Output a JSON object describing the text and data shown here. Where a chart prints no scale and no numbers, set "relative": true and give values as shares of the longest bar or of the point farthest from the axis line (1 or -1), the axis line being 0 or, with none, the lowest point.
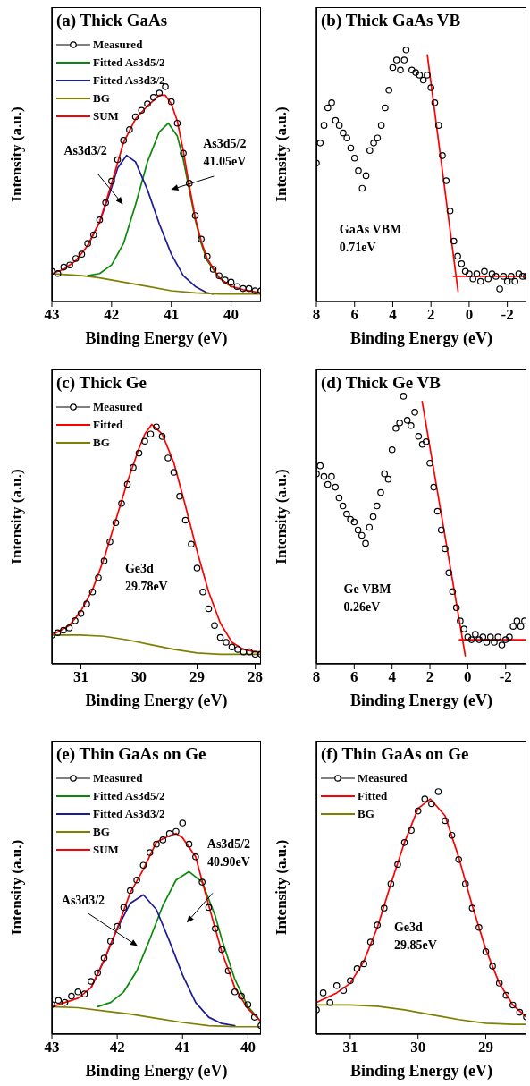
{
  "chart_data": [
    {
      "type": "line",
      "title": "(a) Thick GaAs",
      "xlabel": "Binding Energy (eV)",
      "ylabel": "Intensity (a.u.)",
      "relative": true,
      "xlim": [
        43,
        39.5
      ],
      "xticks": [
        43,
        42,
        41,
        40
      ],
      "legend": "top left",
      "annotations": [
        "As3d3/2",
        "As3d5/2\n41.05eV"
      ],
      "series": [
        {
          "name": "Measured",
          "type": "scatter",
          "color": "#000000",
          "x": [
            43,
            42.9,
            42.8,
            42.7,
            42.6,
            42.5,
            42.4,
            42.3,
            42.2,
            42.1,
            42,
            41.9,
            41.8,
            41.7,
            41.6,
            41.5,
            41.4,
            41.3,
            41.2,
            41.1,
            41,
            40.9,
            40.8,
            40.7,
            40.6,
            40.5,
            40.4,
            40.3,
            40.2,
            40.1,
            40,
            39.9,
            39.8,
            39.7,
            39.6,
            39.5
          ],
          "marker": "circle",
          "values": [
            0.14,
            0.13,
            0.16,
            0.17,
            0.2,
            0.22,
            0.27,
            0.31,
            0.38,
            0.46,
            0.56,
            0.66,
            0.75,
            0.8,
            0.86,
            0.89,
            0.92,
            0.95,
            0.97,
            1,
            0.93,
            0.83,
            0.69,
            0.55,
            0.4,
            0.29,
            0.21,
            0.15,
            0.12,
            0.1,
            0.09,
            0.07,
            0.06,
            0.06,
            0.05,
            0.05
          ]
        },
        {
          "name": "Fitted As3d5/2",
          "color": "#0a8a0a",
          "x": [
            42.4,
            42.2,
            42,
            41.8,
            41.6,
            41.4,
            41.2,
            41.05,
            40.9,
            40.8,
            40.7,
            40.6,
            40.5,
            40.4,
            40.2,
            40
          ],
          "values": [
            0.12,
            0.13,
            0.17,
            0.27,
            0.45,
            0.65,
            0.79,
            0.83,
            0.77,
            0.66,
            0.52,
            0.38,
            0.27,
            0.19,
            0.11,
            0.07
          ]
        },
        {
          "name": "Fitted As3d3/2",
          "color": "#1c1c96",
          "x": [
            42.4,
            42.2,
            42,
            41.9,
            41.75,
            41.6,
            41.4,
            41.2,
            41,
            40.8,
            40.6,
            40.4,
            40.3
          ],
          "values": [
            0.26,
            0.37,
            0.53,
            0.62,
            0.68,
            0.65,
            0.52,
            0.36,
            0.22,
            0.12,
            0.07,
            0.04,
            0.035
          ]
        },
        {
          "name": "BG",
          "color": "#808000",
          "x": [
            43,
            42.5,
            42.2,
            41.8,
            41.4,
            41,
            40.6,
            40.2,
            39.5
          ],
          "values": [
            0.13,
            0.12,
            0.11,
            0.09,
            0.07,
            0.05,
            0.04,
            0.035,
            0.035
          ]
        },
        {
          "name": "SUM",
          "color": "#ff0000",
          "x": [
            43,
            42.8,
            42.6,
            42.4,
            42.2,
            42,
            41.8,
            41.6,
            41.4,
            41.2,
            41.1,
            41,
            40.9,
            40.8,
            40.7,
            40.6,
            40.5,
            40.4,
            40.2,
            40,
            39.8,
            39.5
          ],
          "values": [
            0.13,
            0.15,
            0.19,
            0.26,
            0.37,
            0.55,
            0.74,
            0.85,
            0.91,
            0.96,
            0.96,
            0.92,
            0.84,
            0.7,
            0.54,
            0.39,
            0.28,
            0.2,
            0.11,
            0.07,
            0.055,
            0.04
          ]
        }
      ]
    },
    {
      "type": "line",
      "title": "(b) Thick GaAs VB",
      "xlabel": "Binding Energy (eV)",
      "ylabel": "Intensity (a.u.)",
      "relative": true,
      "xlim": [
        8,
        -3
      ],
      "xticks": [
        8,
        6,
        4,
        2,
        0,
        -2
      ],
      "annotations": [
        "GaAs VBM\n0.71eV"
      ],
      "series": [
        {
          "type": "scatter",
          "color": "#000000",
          "x": [
            8,
            7.8,
            7.6,
            7.4,
            7.2,
            7,
            6.8,
            6.6,
            6.4,
            6.2,
            6,
            5.8,
            5.6,
            5.4,
            5.2,
            5,
            4.8,
            4.6,
            4.4,
            4.2,
            4,
            3.8,
            3.6,
            3.4,
            3.3,
            3,
            2.8,
            2.6,
            2.4,
            2.2,
            2,
            1.8,
            1.6,
            1.4,
            1.2,
            1,
            0.8,
            0.6,
            0.4,
            0.2,
            0,
            -0.2,
            -0.4,
            -0.6,
            -0.8,
            -1,
            -1.2,
            -1.4,
            -1.6,
            -1.8,
            -2,
            -2.2,
            -2.4,
            -2.6,
            -2.8,
            -3
          ],
          "marker": "circle",
          "values": [
            0.55,
            0.63,
            0.7,
            0.77,
            0.79,
            0.72,
            0.7,
            0.67,
            0.65,
            0.61,
            0.57,
            0.52,
            0.45,
            0.5,
            0.6,
            0.63,
            0.65,
            0.7,
            0.77,
            0.84,
            0.93,
            0.96,
            0.92,
            0.96,
            1,
            0.92,
            0.91,
            0.9,
            0.88,
            0.9,
            0.85,
            0.79,
            0.7,
            0.58,
            0.48,
            0.36,
            0.24,
            0.18,
            0.15,
            0.12,
            0.11,
            0.09,
            0.11,
            0.08,
            0.12,
            0.09,
            0.11,
            0.1,
            0.05,
            0.1,
            0.08,
            0.1,
            0.08,
            0.11,
            0.1,
            0.1
          ]
        },
        {
          "color": "#ff0000",
          "x": [
            2.19,
            0.58
          ],
          "values": [
            0.98,
            0.04
          ]
        },
        {
          "color": "#ff0000",
          "x": [
            0.81,
            -3
          ],
          "values": [
            0.1,
            0.1
          ]
        }
      ]
    },
    {
      "type": "line",
      "title": "(c) Thick Ge",
      "xlabel": "Binding Energy (eV)",
      "ylabel": "Intensity (a.u.)",
      "relative": true,
      "xlim": [
        31.5,
        27.9
      ],
      "xticks": [
        31,
        30,
        29,
        28
      ],
      "legend": "top left",
      "annotations": [
        "Ge3d\n29.78eV"
      ],
      "series": [
        {
          "name": "Measured",
          "type": "scatter",
          "color": "#000000",
          "x": [
            31.5,
            31.4,
            31.3,
            31.2,
            31.1,
            31,
            30.9,
            30.8,
            30.7,
            30.6,
            30.5,
            30.4,
            30.3,
            30.2,
            30.1,
            30,
            29.9,
            29.8,
            29.7,
            29.6,
            29.5,
            29.4,
            29.3,
            29.2,
            29.1,
            29,
            28.9,
            28.8,
            28.7,
            28.6,
            28.5,
            28.4,
            28.3,
            28.2,
            28.1,
            28,
            27.9
          ],
          "marker": "circle",
          "values": [
            0.12,
            0.13,
            0.14,
            0.15,
            0.18,
            0.21,
            0.25,
            0.3,
            0.36,
            0.43,
            0.51,
            0.59,
            0.67,
            0.75,
            0.82,
            0.88,
            0.93,
            0.96,
            0.99,
            0.95,
            0.86,
            0.8,
            0.7,
            0.6,
            0.5,
            0.4,
            0.3,
            0.23,
            0.16,
            0.11,
            0.09,
            0.07,
            0.06,
            0.05,
            0.05,
            0.04,
            0.04
          ]
        },
        {
          "name": "Fitted",
          "color": "#ff0000",
          "x": [
            31.5,
            31.2,
            31,
            30.8,
            30.6,
            30.4,
            30.2,
            30,
            29.9,
            29.78,
            29.6,
            29.4,
            29.2,
            29,
            28.8,
            28.6,
            28.4,
            28.2,
            28,
            27.9
          ],
          "values": [
            0.12,
            0.16,
            0.22,
            0.31,
            0.44,
            0.6,
            0.76,
            0.9,
            0.96,
            1,
            0.96,
            0.84,
            0.66,
            0.47,
            0.3,
            0.17,
            0.09,
            0.06,
            0.05,
            0.05
          ]
        },
        {
          "name": "BG",
          "color": "#808000",
          "x": [
            31.5,
            31,
            30.6,
            30.2,
            29.8,
            29.4,
            29,
            28.6,
            28,
            27.9
          ],
          "values": [
            0.12,
            0.12,
            0.115,
            0.1,
            0.08,
            0.06,
            0.045,
            0.04,
            0.04,
            0.04
          ]
        }
      ]
    },
    {
      "type": "line",
      "title": "(d) Thick Ge VB",
      "xlabel": "Binding Energy (eV)",
      "ylabel": "Intensity (a.u.)",
      "relative": true,
      "xlim": [
        8,
        -3.1
      ],
      "xticks": [
        8,
        6,
        4,
        2,
        0,
        -2
      ],
      "annotations": [
        "Ge VBM\n0.26eV"
      ],
      "series": [
        {
          "type": "scatter",
          "color": "#000000",
          "x": [
            8,
            7.8,
            7.6,
            7.4,
            7.2,
            7,
            6.8,
            6.6,
            6.4,
            6.2,
            6,
            5.8,
            5.6,
            5.4,
            5.2,
            5,
            4.8,
            4.6,
            4.4,
            4.2,
            4,
            3.8,
            3.6,
            3.4,
            3.2,
            3,
            2.8,
            2.6,
            2.4,
            2.2,
            2,
            1.8,
            1.6,
            1.4,
            1.2,
            1,
            0.8,
            0.6,
            0.4,
            0.2,
            0,
            -0.2,
            -0.4,
            -0.6,
            -0.8,
            -1,
            -1.2,
            -1.4,
            -1.6,
            -1.8,
            -2,
            -2.2,
            -2.4,
            -2.6,
            -2.8,
            -3
          ],
          "marker": "circle",
          "values": [
            0.71,
            0.74,
            0.7,
            0.67,
            0.7,
            0.66,
            0.62,
            0.59,
            0.56,
            0.54,
            0.53,
            0.5,
            0.48,
            0.45,
            0.51,
            0.55,
            0.59,
            0.64,
            0.71,
            0.69,
            0.8,
            0.88,
            0.9,
            1,
            0.91,
            0.89,
            0.94,
            0.85,
            0.82,
            0.83,
            0.75,
            0.66,
            0.57,
            0.5,
            0.43,
            0.34,
            0.27,
            0.21,
            0.16,
            0.13,
            0.1,
            0.09,
            0.11,
            0.09,
            0.1,
            0.08,
            0.1,
            0.08,
            0.1,
            0.07,
            0.09,
            0.1,
            0.14,
            0.16,
            0.14,
            0.16
          ]
        },
        {
          "color": "#ff0000",
          "x": [
            2.41,
            0.13
          ],
          "values": [
            0.98,
            0.03
          ]
        },
        {
          "color": "#ff0000",
          "x": [
            0.44,
            -3.1
          ],
          "values": [
            0.09,
            0.09
          ]
        }
      ]
    },
    {
      "type": "line",
      "title": "(e) Thin GaAs on Ge",
      "xlabel": "Binding Energy (eV)",
      "ylabel": "Intensity (a.u.)",
      "relative": true,
      "xlim": [
        43,
        39.8
      ],
      "xticks": [
        43,
        42,
        41,
        40
      ],
      "legend": "top left",
      "annotations": [
        "As3d3/2",
        "As3d5/2\n40.90eV"
      ],
      "series": [
        {
          "name": "Measured",
          "type": "scatter",
          "color": "#000000",
          "x": [
            43,
            42.9,
            42.8,
            42.7,
            42.6,
            42.5,
            42.4,
            42.3,
            42.2,
            42.1,
            42,
            41.9,
            41.8,
            41.7,
            41.6,
            41.5,
            41.4,
            41.3,
            41.2,
            41.1,
            41,
            40.9,
            40.8,
            40.7,
            40.6,
            40.5,
            40.4,
            40.3,
            40.2,
            40.1,
            40,
            39.9,
            39.8
          ],
          "marker": "circle",
          "values": [
            0.14,
            0.16,
            0.15,
            0.18,
            0.2,
            0.19,
            0.25,
            0.29,
            0.36,
            0.44,
            0.51,
            0.6,
            0.68,
            0.73,
            0.8,
            0.86,
            0.9,
            0.92,
            0.95,
            0.96,
            1,
            0.9,
            0.84,
            0.72,
            0.6,
            0.5,
            0.4,
            0.3,
            0.2,
            0.18,
            0.14,
            0.08,
            0.04
          ]
        },
        {
          "name": "Fitted As3d5/2",
          "color": "#0a8a0a",
          "x": [
            42.3,
            42.1,
            41.9,
            41.7,
            41.5,
            41.3,
            41.1,
            40.9,
            40.7,
            40.5,
            40.4,
            40.2,
            40,
            39.8
          ],
          "values": [
            0.13,
            0.15,
            0.2,
            0.3,
            0.45,
            0.61,
            0.73,
            0.77,
            0.72,
            0.56,
            0.45,
            0.26,
            0.13,
            0.06
          ]
        },
        {
          "name": "Fitted As3d3/2",
          "color": "#1c1c96",
          "x": [
            42.4,
            42.2,
            42,
            41.8,
            41.6,
            41.4,
            41.2,
            41,
            40.8,
            40.6,
            40.4,
            40.2
          ],
          "values": [
            0.22,
            0.35,
            0.5,
            0.62,
            0.66,
            0.59,
            0.44,
            0.28,
            0.15,
            0.08,
            0.05,
            0.04
          ]
        },
        {
          "name": "BG",
          "color": "#808000",
          "x": [
            43,
            42.6,
            42.2,
            41.8,
            41.4,
            41,
            40.6,
            40.2,
            39.8
          ],
          "values": [
            0.13,
            0.125,
            0.11,
            0.095,
            0.075,
            0.055,
            0.04,
            0.035,
            0.035
          ]
        },
        {
          "name": "SUM",
          "color": "#ff0000",
          "x": [
            43,
            42.6,
            42.4,
            42.2,
            42,
            41.8,
            41.6,
            41.4,
            41.2,
            41.1,
            41,
            40.8,
            40.6,
            40.4,
            40.2,
            40,
            39.8
          ],
          "values": [
            0.13,
            0.17,
            0.22,
            0.35,
            0.5,
            0.67,
            0.78,
            0.91,
            0.94,
            0.95,
            0.93,
            0.84,
            0.61,
            0.39,
            0.22,
            0.12,
            0.06
          ]
        }
      ]
    },
    {
      "type": "line",
      "title": "(f) Thin GaAs on Ge",
      "xlabel": "Binding Energy (eV)",
      "ylabel": "Intensity (a.u.)",
      "relative": true,
      "xlim": [
        31.5,
        28.4
      ],
      "xticks": [
        31,
        30,
        29
      ],
      "legend": "top left",
      "annotations": [
        "Ge3d\n29.85eV"
      ],
      "series": [
        {
          "name": "Measured",
          "type": "scatter",
          "color": "#000000",
          "x": [
            31.5,
            31.4,
            31.3,
            31.2,
            31.1,
            31,
            30.9,
            30.8,
            30.7,
            30.6,
            30.5,
            30.4,
            30.3,
            30.2,
            30.1,
            30,
            29.9,
            29.8,
            29.7,
            29.6,
            29.5,
            29.4,
            29.3,
            29.2,
            29.1,
            29,
            28.9,
            28.8,
            28.7,
            28.6,
            28.5,
            28.4
          ],
          "marker": "circle",
          "values": [
            0.1,
            0.17,
            0.13,
            0.2,
            0.18,
            0.22,
            0.27,
            0.29,
            0.38,
            0.45,
            0.52,
            0.62,
            0.7,
            0.79,
            0.84,
            0.92,
            0.97,
            0.95,
            1,
            0.88,
            0.82,
            0.72,
            0.62,
            0.52,
            0.44,
            0.34,
            0.28,
            0.21,
            0.16,
            0.12,
            0.09,
            0.07
          ]
        },
        {
          "name": "Fitted",
          "color": "#ff0000",
          "x": [
            31.5,
            31.2,
            31,
            30.8,
            30.6,
            30.4,
            30.2,
            30,
            29.82,
            29.6,
            29.4,
            29.2,
            29,
            28.8,
            28.6,
            28.4
          ],
          "values": [
            0.13,
            0.17,
            0.21,
            0.3,
            0.44,
            0.62,
            0.79,
            0.93,
            0.97,
            0.9,
            0.73,
            0.53,
            0.35,
            0.21,
            0.12,
            0.07
          ]
        },
        {
          "name": "BG",
          "color": "#808000",
          "x": [
            31.5,
            31,
            30.6,
            30.2,
            29.8,
            29.4,
            29,
            28.6,
            28.4
          ],
          "values": [
            0.12,
            0.12,
            0.115,
            0.1,
            0.08,
            0.06,
            0.045,
            0.04,
            0.04
          ]
        }
      ]
    }
  ]
}
